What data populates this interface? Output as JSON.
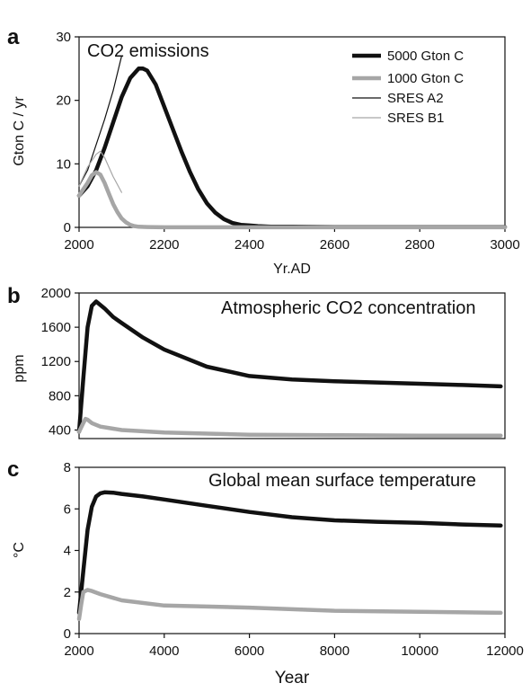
{
  "chart_data": [
    {
      "panel": "a",
      "type": "line",
      "title": "CO2 emissions",
      "xlabel": "Yr.AD",
      "ylabel": "Gton C / yr",
      "xlim": [
        2000,
        3000
      ],
      "ylim": [
        0,
        30
      ],
      "xticks": [
        2000,
        2200,
        2400,
        2600,
        2800,
        3000
      ],
      "yticks": [
        0,
        10,
        20,
        30
      ],
      "legend": "top-right",
      "series": [
        {
          "name": "5000 Gton C",
          "color": "#111111",
          "width": "thick",
          "x": [
            2000,
            2020,
            2040,
            2060,
            2080,
            2100,
            2120,
            2140,
            2150,
            2160,
            2180,
            2200,
            2220,
            2240,
            2260,
            2280,
            2300,
            2320,
            2340,
            2360,
            2380,
            2400,
            2420,
            2450,
            2500,
            2600,
            2800,
            3000
          ],
          "y": [
            5,
            6.5,
            9,
            12.5,
            16.5,
            20.5,
            23.5,
            25,
            25,
            24.7,
            22.5,
            19,
            15.5,
            12,
            8.8,
            6,
            3.8,
            2.3,
            1.3,
            0.7,
            0.4,
            0.3,
            0.2,
            0.1,
            0.1,
            0.05,
            0.05,
            0.05
          ]
        },
        {
          "name": "1000 Gton C",
          "color": "#a6a6a6",
          "width": "thick",
          "x": [
            2000,
            2010,
            2020,
            2030,
            2040,
            2050,
            2060,
            2070,
            2080,
            2090,
            2100,
            2110,
            2120,
            2130,
            2140,
            2160,
            2200,
            2400,
            2600,
            2800,
            3000
          ],
          "y": [
            5,
            6,
            7,
            8.2,
            8.7,
            8.3,
            7,
            5.3,
            3.7,
            2.4,
            1.4,
            0.8,
            0.4,
            0.2,
            0.1,
            0.05,
            0.02,
            0.02,
            0.02,
            0.02,
            0.02
          ]
        },
        {
          "name": "SRES A2",
          "color": "#111111",
          "width": "thin",
          "x": [
            2000,
            2020,
            2040,
            2060,
            2080,
            2100
          ],
          "y": [
            6.5,
            9,
            13,
            17,
            21.5,
            27
          ]
        },
        {
          "name": "SRES B1",
          "color": "#a6a6a6",
          "width": "thin",
          "x": [
            2000,
            2020,
            2040,
            2050,
            2060,
            2080,
            2100
          ],
          "y": [
            6.5,
            9.5,
            11.5,
            12,
            11,
            8,
            5.5
          ]
        }
      ]
    },
    {
      "panel": "b",
      "type": "line",
      "title": "Atmospheric CO2 concentration",
      "xlabel": "",
      "ylabel": "ppm",
      "xlim": [
        2000,
        12000
      ],
      "ylim": [
        300,
        2000
      ],
      "yticks": [
        400,
        800,
        1200,
        1600,
        2000
      ],
      "series": [
        {
          "name": "5000 Gton C",
          "color": "#111111",
          "width": "thick",
          "x": [
            2000,
            2100,
            2200,
            2300,
            2400,
            2600,
            2800,
            3000,
            3500,
            4000,
            5000,
            6000,
            7000,
            8000,
            9000,
            10000,
            11000,
            11900
          ],
          "y": [
            380,
            1000,
            1600,
            1850,
            1900,
            1820,
            1720,
            1650,
            1480,
            1340,
            1140,
            1030,
            990,
            970,
            955,
            940,
            925,
            910
          ]
        },
        {
          "name": "1000 Gton C",
          "color": "#a6a6a6",
          "width": "thick",
          "x": [
            2000,
            2100,
            2150,
            2200,
            2300,
            2500,
            3000,
            4000,
            6000,
            8000,
            10000,
            11900
          ],
          "y": [
            380,
            480,
            530,
            520,
            480,
            440,
            400,
            370,
            345,
            340,
            335,
            335
          ]
        }
      ]
    },
    {
      "panel": "c",
      "type": "line",
      "title": "Global mean surface temperature",
      "xlabel": "Year",
      "ylabel": "°C",
      "xlim": [
        2000,
        12000
      ],
      "ylim": [
        0,
        8
      ],
      "xticks": [
        2000,
        4000,
        6000,
        8000,
        10000,
        12000
      ],
      "yticks": [
        0,
        2,
        4,
        6,
        8
      ],
      "series": [
        {
          "name": "5000 Gton C",
          "color": "#111111",
          "width": "thick",
          "x": [
            2000,
            2100,
            2200,
            2300,
            2400,
            2500,
            2600,
            2800,
            3000,
            3500,
            4000,
            5000,
            6000,
            7000,
            8000,
            9000,
            10000,
            11000,
            11900
          ],
          "y": [
            1,
            3,
            5,
            6.1,
            6.6,
            6.75,
            6.8,
            6.78,
            6.72,
            6.6,
            6.45,
            6.15,
            5.85,
            5.6,
            5.45,
            5.38,
            5.33,
            5.25,
            5.2
          ]
        },
        {
          "name": "1000 Gton C",
          "color": "#a6a6a6",
          "width": "thick",
          "x": [
            2000,
            2050,
            2100,
            2200,
            2300,
            2500,
            3000,
            4000,
            5000,
            6000,
            8000,
            10000,
            11900
          ],
          "y": [
            0.7,
            1.4,
            2.0,
            2.1,
            2.05,
            1.9,
            1.6,
            1.35,
            1.3,
            1.25,
            1.1,
            1.05,
            1.0
          ]
        }
      ]
    }
  ]
}
